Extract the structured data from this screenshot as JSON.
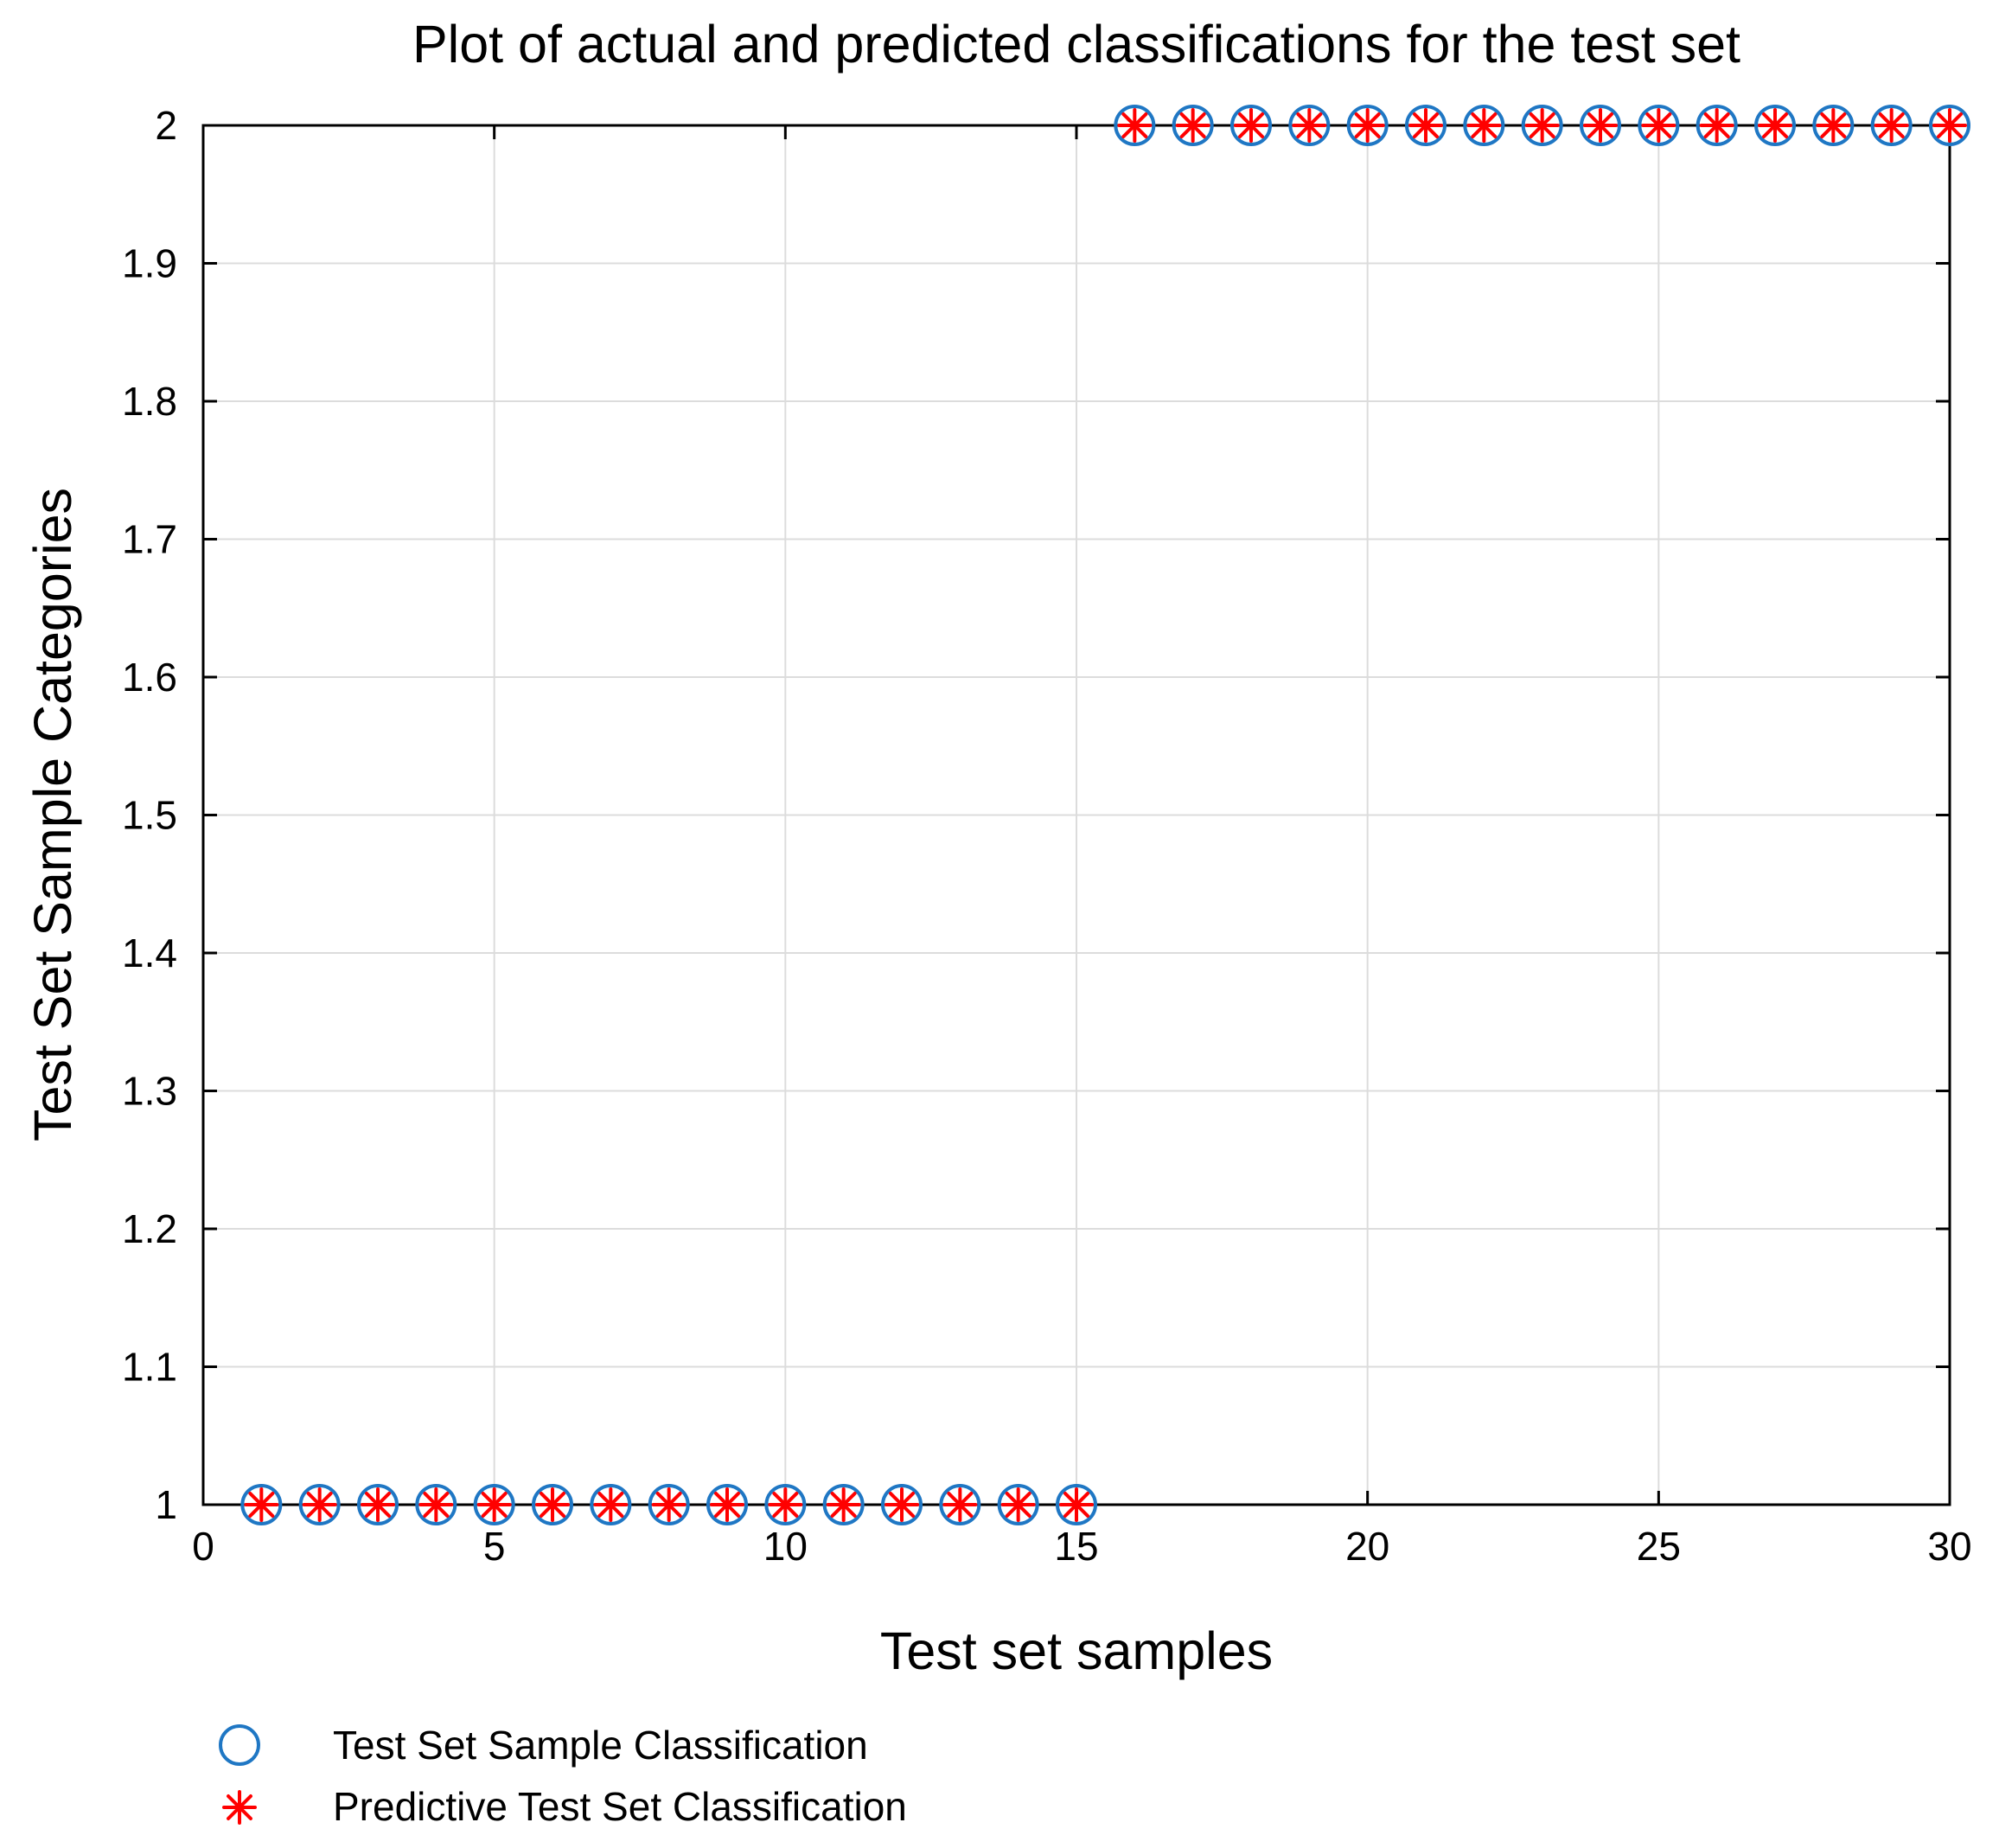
{
  "chart_data": {
    "type": "scatter",
    "title": "Plot of actual and predicted classifications for the test set",
    "xlabel": "Test set samples",
    "ylabel": "Test Set Sample Categories",
    "xlim": [
      0,
      30
    ],
    "ylim": [
      1,
      2
    ],
    "xticks": [
      "0",
      "5",
      "10",
      "15",
      "20",
      "25",
      "30"
    ],
    "yticks": [
      "1",
      "1.1",
      "1.2",
      "1.3",
      "1.4",
      "1.5",
      "1.6",
      "1.7",
      "1.8",
      "1.9",
      "2"
    ],
    "grid": true,
    "legend_position": "bottom-left",
    "x": [
      1,
      2,
      3,
      4,
      5,
      6,
      7,
      8,
      9,
      10,
      11,
      12,
      13,
      14,
      15,
      16,
      17,
      18,
      19,
      20,
      21,
      22,
      23,
      24,
      25,
      26,
      27,
      28,
      29,
      30
    ],
    "series": [
      {
        "name": "Test Set Sample Classification",
        "marker": "circle",
        "color": "#1f77c4",
        "values": [
          1,
          1,
          1,
          1,
          1,
          1,
          1,
          1,
          1,
          1,
          1,
          1,
          1,
          1,
          1,
          2,
          2,
          2,
          2,
          2,
          2,
          2,
          2,
          2,
          2,
          2,
          2,
          2,
          2,
          2
        ]
      },
      {
        "name": "Predictive Test Set Classification",
        "marker": "asterisk",
        "color": "#ff0000",
        "values": [
          1,
          1,
          1,
          1,
          1,
          1,
          1,
          1,
          1,
          1,
          1,
          1,
          1,
          1,
          1,
          2,
          2,
          2,
          2,
          2,
          2,
          2,
          2,
          2,
          2,
          2,
          2,
          2,
          2,
          2
        ]
      }
    ]
  }
}
